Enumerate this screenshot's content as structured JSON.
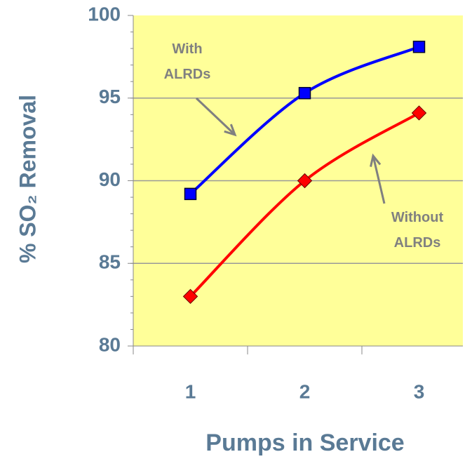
{
  "chart_data": {
    "type": "line",
    "x_label": "Pumps in Service",
    "y_label": "% SO₂ Removal",
    "categories": [
      "1",
      "2",
      "3"
    ],
    "series": [
      {
        "name": "With ALRDs",
        "color": "#0000ff",
        "marker": "square",
        "values": [
          89.2,
          95.3,
          98.1
        ]
      },
      {
        "name": "Without ALRDs",
        "color": "#ff0000",
        "marker": "diamond",
        "values": [
          83.0,
          90.0,
          94.1
        ]
      }
    ],
    "ylim": [
      80,
      100
    ],
    "yticks": [
      80,
      85,
      90,
      95,
      100
    ],
    "grid": true,
    "background": "#ffff99"
  }
}
